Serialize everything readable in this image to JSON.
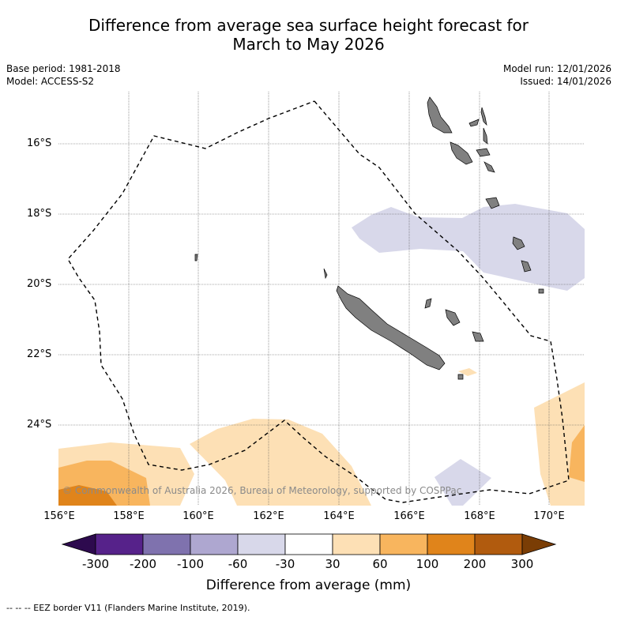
{
  "title_line1": "Difference from average sea surface height forecast for",
  "title_line2": "March to May 2026",
  "base_period": "Base period: 1981-2018",
  "model": "Model: ACCESS-S2",
  "model_run": "Model run: 12/01/2026",
  "issued": "Issued: 14/01/2026",
  "lat_labels": [
    "16°S",
    "18°S",
    "20°S",
    "22°S",
    "24°S"
  ],
  "lon_labels": [
    "156°E",
    "158°E",
    "160°E",
    "162°E",
    "164°E",
    "166°E",
    "168°E",
    "170°E"
  ],
  "copyright": "© Commonwealth of Australia 2026, Bureau of Meteorology, supported by COSPPac",
  "colorbar": {
    "labels": [
      "-300",
      "-200",
      "-100",
      "-60",
      "-30",
      "30",
      "60",
      "100",
      "200",
      "300"
    ],
    "colors": [
      "#2d0a4e",
      "#56228a",
      "#7f72ae",
      "#aea7d0",
      "#d8d8ea",
      "#ffffff",
      "#fde0b5",
      "#f8b55e",
      "#e0841b",
      "#b15b0e",
      "#7a3d05"
    ],
    "title": "Difference from average (mm)"
  },
  "footer": "--  --  -- EEZ border V11 (Flanders Marine Institute, 2019)."
}
